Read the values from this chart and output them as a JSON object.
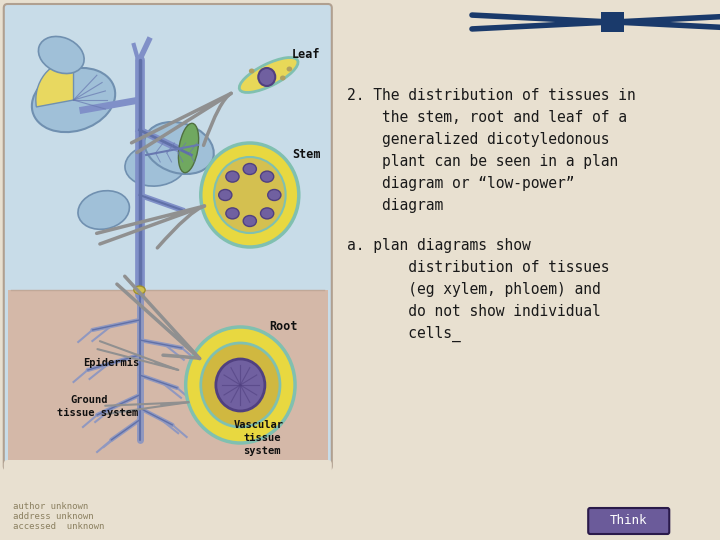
{
  "bg_color": "#E8E0D0",
  "panel_bg": "#C8DCE8",
  "soil_bg": "#D4B8A8",
  "panel_border": "#B0A090",
  "stem_color": "#8090C8",
  "stem_dark": "#6070A8",
  "leaf_color": "#A0C0D8",
  "leaf_dark": "#7090B0",
  "leaf_vein": "#6878B0",
  "leaf_yellow": "#E8D860",
  "root_color": "#9098C0",
  "arrow_gray": "#909090",
  "cs_yellow": "#E8D840",
  "cs_teal": "#80C0B0",
  "cs_purple": "#7060A0",
  "cs_purple_dark": "#504080",
  "leaf_cs_yellow": "#E8D858",
  "leaf_cs_purple": "#7060A0",
  "text_color": "#1A1A1A",
  "bold_label_color": "#101010",
  "nav_arrow_color": "#1A3A6B",
  "think_btn_color": "#6B5B9A",
  "think_btn_edge": "#2A1A4A",
  "footer_color": "#8B8060",
  "main_text_lines": [
    "2. The distribution of tissues in",
    "    the stem, root and leaf of a",
    "    generalized dicotyledonous",
    "    plant can be seen in a plan",
    "    diagram or “low-power”",
    "    diagram"
  ],
  "sub_text_lines": [
    "a. plan diagrams show",
    "       distribution of tissues",
    "       (eg xylem, phloem) and",
    "       do not show individual",
    "       cells_"
  ],
  "footer_lines": [
    "author unknown",
    "address unknown",
    "accessed  unknown"
  ],
  "think_text": "Think",
  "font_size_main": 10.5,
  "font_size_sub": 10.5,
  "font_size_footer": 6.5,
  "font_size_think": 9,
  "font_size_label": 8.5
}
